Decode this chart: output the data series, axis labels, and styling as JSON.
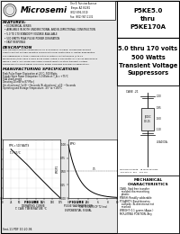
{
  "title_part": "P5KE5.0\nthru\nP5KE170A",
  "subtitle_voltage": "5.0 thru 170 volts\n500 Watts\nTransient Voltage\nSuppressors",
  "company": "Microsemi",
  "features_title": "FEATURES:",
  "features": [
    "ECONOMICAL SERIES",
    "AVAILABLE IN BOTH UNIDIRECTIONAL AND BI-DIRECTIONAL CONSTRUCTION",
    "5.0 TO 170 STANDOFF VOLTAGE AVAILABLE",
    "500 WATTS PEAK PULSE POWER DISSIPATION",
    "FAST RESPONSE"
  ],
  "description_title": "DESCRIPTION",
  "desc_lines": [
    "This Transient Voltage Suppressor is an economical, molded, commercial product",
    "used to protect voltage sensitive components from destruction or partial degradation.",
    "The ruggedness of their clamping action is virtually instantaneous (1 to 10",
    "picoseconds) they have a peak pulse power rating of 500 watts for 1 ms as displayed in",
    "Figure 1 and 2. Microsemi also offers a great variety of other transient voltage",
    "Suppressors to meet higher and lower power demands and special applications."
  ],
  "mfr_title": "MANUFACTURING SPECIFICATIONS",
  "mfr_specs": [
    "Peak Pulse Power Dissipation at 25°C: 500 Watts",
    "Steady State Power Dissipation: 5.0 Watts at T_A = +75°C",
    "50Ω Load Length",
    "Derating 20 mW to 87 Mhz J",
    "Uni-directional: 1x10⁻¹² Seconds; Bi-directional: ±10⁻¹² Seconds",
    "Operating and Storage Temperature: -55° to +150°C"
  ],
  "mech_title": "MECHANICAL\nCHARACTERISTICS",
  "mech_items": [
    "CASE: Void free transfer\n  molded thermosetting\n  plastic",
    "FINISH: Readily solderable",
    "POLARITY: Band denotes\n  cathode. Bi-directional not\n  marked",
    "WEIGHT: 0.1 grams (Appx.)",
    "MOUNTING POSITION: Any"
  ],
  "doc_num": "Smt-11 PDF 10-20-94",
  "bg_color": "#e8e8e8",
  "white": "#ffffff",
  "black": "#000000",
  "header_bg": "#f5f5f5"
}
